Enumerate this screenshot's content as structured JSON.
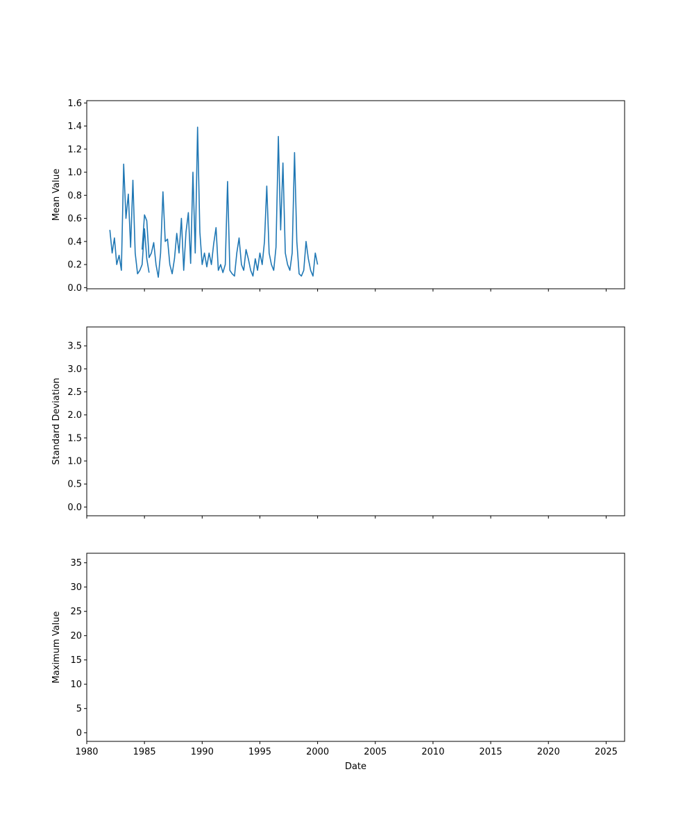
{
  "chart_data": [
    {
      "type": "line",
      "ylabel": "Mean Value",
      "xlabel": "",
      "xlim": [
        1980.0,
        2026.6
      ],
      "ylim": [
        -0.01,
        1.62
      ],
      "yticks": [
        0.0,
        0.2,
        0.4,
        0.6,
        0.8,
        1.0,
        1.2,
        1.4,
        1.6
      ],
      "ytick_labels": [
        "0.0",
        "0.2",
        "0.4",
        "0.6",
        "0.8",
        "1.0",
        "1.2",
        "1.4",
        "1.6"
      ],
      "xticks": [
        1980,
        1985,
        1990,
        1995,
        2000,
        2005,
        2010,
        2015,
        2020,
        2025
      ],
      "xtick_labels": [],
      "line_color": "#1f77b4",
      "grid": false,
      "series": [
        {
          "segments": [
            [
              [
                1982.0,
                0.5
              ],
              [
                1982.2,
                0.3
              ],
              [
                1982.4,
                0.43
              ],
              [
                1982.6,
                0.2
              ],
              [
                1982.8,
                0.28
              ],
              [
                1983.0,
                0.15
              ],
              [
                1983.2,
                1.07
              ],
              [
                1983.4,
                0.6
              ],
              [
                1983.6,
                0.81
              ],
              [
                1983.8,
                0.35
              ],
              [
                1984.0,
                0.93
              ],
              [
                1984.2,
                0.3
              ],
              [
                1984.4,
                0.12
              ],
              [
                1984.6,
                0.15
              ],
              [
                1984.8,
                0.2
              ],
              [
                1985.0,
                0.51
              ],
              [
                1985.2,
                0.25
              ],
              [
                1985.4,
                0.13
              ]
            ],
            [
              [
                1984.8,
                0.33
              ],
              [
                1985.0,
                0.63
              ],
              [
                1985.2,
                0.58
              ],
              [
                1985.4,
                0.26
              ],
              [
                1985.6,
                0.3
              ],
              [
                1985.8,
                0.39
              ],
              [
                1986.0,
                0.2
              ],
              [
                1986.2,
                0.09
              ],
              [
                1986.4,
                0.3
              ],
              [
                1986.6,
                0.83
              ],
              [
                1986.8,
                0.4
              ],
              [
                1987.0,
                0.42
              ],
              [
                1987.2,
                0.2
              ],
              [
                1987.4,
                0.12
              ],
              [
                1987.6,
                0.25
              ],
              [
                1987.8,
                0.47
              ],
              [
                1988.0,
                0.3
              ],
              [
                1988.2,
                0.6
              ],
              [
                1988.4,
                0.15
              ],
              [
                1988.6,
                0.48
              ],
              [
                1988.8,
                0.65
              ],
              [
                1989.0,
                0.21
              ],
              [
                1989.2,
                1.0
              ],
              [
                1989.4,
                0.3
              ],
              [
                1989.6,
                1.39
              ],
              [
                1989.8,
                0.48
              ],
              [
                1990.0,
                0.2
              ],
              [
                1990.2,
                0.3
              ],
              [
                1990.4,
                0.18
              ],
              [
                1990.6,
                0.3
              ],
              [
                1990.8,
                0.2
              ],
              [
                1991.0,
                0.38
              ],
              [
                1991.2,
                0.52
              ],
              [
                1991.4,
                0.15
              ],
              [
                1991.6,
                0.2
              ],
              [
                1991.8,
                0.13
              ],
              [
                1992.0,
                0.2
              ],
              [
                1992.2,
                0.92
              ],
              [
                1992.4,
                0.15
              ],
              [
                1992.6,
                0.12
              ],
              [
                1992.8,
                0.1
              ],
              [
                1993.0,
                0.3
              ],
              [
                1993.2,
                0.43
              ],
              [
                1993.4,
                0.2
              ],
              [
                1993.6,
                0.15
              ],
              [
                1993.8,
                0.33
              ],
              [
                1994.0,
                0.25
              ],
              [
                1994.2,
                0.15
              ],
              [
                1994.4,
                0.1
              ],
              [
                1994.6,
                0.25
              ],
              [
                1994.8,
                0.15
              ],
              [
                1995.0,
                0.3
              ],
              [
                1995.2,
                0.2
              ],
              [
                1995.4,
                0.4
              ],
              [
                1995.6,
                0.88
              ],
              [
                1995.8,
                0.3
              ],
              [
                1996.0,
                0.2
              ],
              [
                1996.2,
                0.15
              ],
              [
                1996.4,
                0.35
              ],
              [
                1996.6,
                1.31
              ],
              [
                1996.8,
                0.5
              ],
              [
                1997.0,
                1.08
              ],
              [
                1997.2,
                0.3
              ],
              [
                1997.4,
                0.2
              ],
              [
                1997.6,
                0.15
              ],
              [
                1997.8,
                0.3
              ],
              [
                1998.0,
                1.17
              ],
              [
                1998.2,
                0.4
              ],
              [
                1998.4,
                0.12
              ],
              [
                1998.6,
                0.1
              ],
              [
                1998.8,
                0.15
              ],
              [
                1999.0,
                0.4
              ],
              [
                1999.2,
                0.25
              ],
              [
                1999.4,
                0.15
              ],
              [
                1999.6,
                0.1
              ],
              [
                1999.8,
                0.3
              ],
              [
                2000.0,
                0.2
              ]
            ]
          ]
        }
      ]
    },
    {
      "type": "line",
      "ylabel": "Standard Deviation",
      "xlabel": "",
      "xlim": [
        1980.0,
        2026.6
      ],
      "ylim": [
        -0.19,
        3.91
      ],
      "yticks": [
        0.0,
        0.5,
        1.0,
        1.5,
        2.0,
        2.5,
        3.0,
        3.5
      ],
      "ytick_labels": [
        "0.0",
        "0.5",
        "1.0",
        "1.5",
        "2.0",
        "2.5",
        "3.0",
        "3.5"
      ],
      "xticks": [
        1980,
        1985,
        1990,
        1995,
        2000,
        2005,
        2010,
        2015,
        2020,
        2025
      ],
      "xtick_labels": [],
      "line_color": "#1f77b4",
      "grid": false,
      "series": [
        {
          "segments": []
        }
      ]
    },
    {
      "type": "line",
      "ylabel": "Maximum Value",
      "xlabel": "Date",
      "xlim": [
        1980.0,
        2026.6
      ],
      "ylim": [
        -1.76,
        36.96
      ],
      "yticks": [
        0,
        5,
        10,
        15,
        20,
        25,
        30,
        35
      ],
      "ytick_labels": [
        "0",
        "5",
        "10",
        "15",
        "20",
        "25",
        "30",
        "35"
      ],
      "xticks": [
        1980,
        1985,
        1990,
        1995,
        2000,
        2005,
        2010,
        2015,
        2020,
        2025
      ],
      "xtick_labels": [
        "1980",
        "1985",
        "1990",
        "1995",
        "2000",
        "2005",
        "2010",
        "2015",
        "2020",
        "2025"
      ],
      "line_color": "#1f77b4",
      "grid": false,
      "series": [
        {
          "segments": []
        }
      ]
    }
  ]
}
